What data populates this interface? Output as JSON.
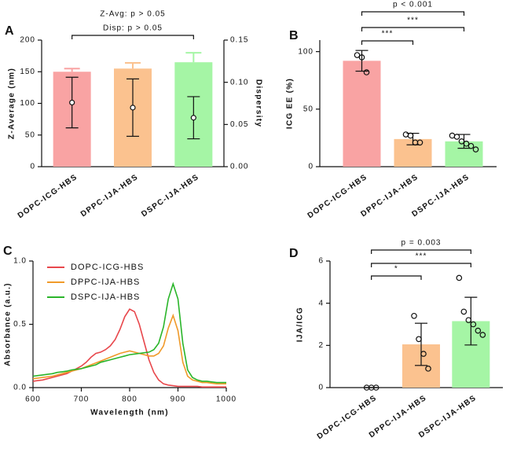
{
  "chart_data": [
    {
      "type": "bar",
      "panel": "A",
      "ylabel": "Z-Average (nm)",
      "y2label": "Dispersity",
      "categories": [
        "DOPC-ICG-HBS",
        "DPPC-IJA-HBS",
        "DSPC-IJA-HBS"
      ],
      "values": [
        150,
        155,
        165
      ],
      "errors": [
        5,
        9,
        15
      ],
      "colors": [
        "#f9a3a3",
        "#fbc28f",
        "#a5f5a5"
      ],
      "ylim": [
        0,
        200
      ],
      "yticks": [
        0,
        50,
        100,
        150,
        200
      ],
      "overlay": {
        "axis": "y2",
        "values": [
          0.076,
          0.07,
          0.058
        ],
        "errors": [
          0.03,
          0.034,
          0.025
        ]
      },
      "y2lim": [
        0,
        0.15
      ],
      "y2ticks": [
        {
          "value": 0,
          "label": "0.00"
        },
        {
          "value": 0.05,
          "label": "0.05"
        },
        {
          "value": 0.1,
          "label": "0.10"
        },
        {
          "value": 0.15,
          "label": "0.15"
        }
      ],
      "comparisons": [
        {
          "from": 0,
          "to": 2,
          "labels": [
            "Z-Avg: p > 0.05",
            "Disp: p > 0.05"
          ]
        }
      ]
    },
    {
      "type": "bar",
      "panel": "B",
      "ylabel": "ICG EE (%)",
      "categories": [
        "DOPC-ICG-HBS",
        "DPPC-IJA-HBS",
        "DSPC-IJA-HBS"
      ],
      "values": [
        92,
        24,
        22
      ],
      "errors": [
        9,
        5,
        6
      ],
      "colors": [
        "#f9a3a3",
        "#fbc28f",
        "#a5f5a5"
      ],
      "points": [
        [
          97,
          95,
          82
        ],
        [
          28,
          27,
          21,
          21
        ],
        [
          27,
          26,
          22,
          20,
          18,
          15
        ]
      ],
      "ylim": [
        0,
        110
      ],
      "yticks": [
        0,
        50,
        100
      ],
      "comparisons": [
        {
          "from": 0,
          "to": 2,
          "labels": [
            "p < 0.001"
          ]
        },
        {
          "from": 0,
          "to": 2,
          "labels": [
            "***"
          ]
        },
        {
          "from": 0,
          "to": 1,
          "labels": [
            "***"
          ]
        }
      ]
    },
    {
      "type": "line",
      "panel": "C",
      "ylabel": "Absorbance (a.u.)",
      "xlabel": "Wavelength (nm)",
      "x": [
        600,
        610,
        620,
        630,
        640,
        650,
        660,
        670,
        680,
        690,
        700,
        710,
        720,
        730,
        740,
        750,
        760,
        770,
        780,
        790,
        800,
        810,
        820,
        830,
        840,
        850,
        860,
        870,
        880,
        890,
        900,
        910,
        920,
        930,
        940,
        950,
        960,
        970,
        980,
        990,
        1000
      ],
      "series": [
        {
          "name": "DOPC-ICG-HBS",
          "color": "#e8474c",
          "values": [
            0.05,
            0.055,
            0.06,
            0.07,
            0.08,
            0.09,
            0.1,
            0.11,
            0.13,
            0.15,
            0.17,
            0.2,
            0.24,
            0.27,
            0.28,
            0.3,
            0.33,
            0.38,
            0.46,
            0.56,
            0.62,
            0.6,
            0.5,
            0.36,
            0.22,
            0.12,
            0.06,
            0.03,
            0.02,
            0.015,
            0.01,
            0.01,
            0.01,
            0.01,
            0.01,
            0.005,
            0.005,
            0.005,
            0.005,
            0.005,
            0.005
          ]
        },
        {
          "name": "DPPC-IJA-HBS",
          "color": "#f09a2a",
          "values": [
            0.07,
            0.075,
            0.08,
            0.085,
            0.09,
            0.1,
            0.11,
            0.12,
            0.13,
            0.14,
            0.15,
            0.165,
            0.18,
            0.195,
            0.21,
            0.225,
            0.24,
            0.255,
            0.27,
            0.28,
            0.29,
            0.28,
            0.27,
            0.26,
            0.25,
            0.25,
            0.27,
            0.33,
            0.47,
            0.57,
            0.45,
            0.2,
            0.09,
            0.06,
            0.05,
            0.04,
            0.04,
            0.035,
            0.03,
            0.03,
            0.03
          ]
        },
        {
          "name": "DSPC-IJA-HBS",
          "color": "#2ab52a",
          "values": [
            0.09,
            0.095,
            0.1,
            0.105,
            0.11,
            0.12,
            0.125,
            0.13,
            0.14,
            0.145,
            0.15,
            0.16,
            0.17,
            0.18,
            0.2,
            0.21,
            0.22,
            0.23,
            0.24,
            0.25,
            0.26,
            0.265,
            0.27,
            0.275,
            0.28,
            0.3,
            0.35,
            0.48,
            0.7,
            0.82,
            0.7,
            0.35,
            0.14,
            0.08,
            0.06,
            0.05,
            0.05,
            0.045,
            0.04,
            0.04,
            0.04
          ]
        }
      ],
      "xlim": [
        600,
        1000
      ],
      "xticks": [
        600,
        700,
        800,
        900,
        1000
      ],
      "ylim": [
        0,
        1
      ],
      "yticks": [
        {
          "value": 0,
          "label": "0.0"
        },
        {
          "value": 0.5,
          "label": "0.5"
        },
        {
          "value": 1,
          "label": "1.0"
        }
      ],
      "legend": "upper left"
    },
    {
      "type": "bar",
      "panel": "D",
      "ylabel": "IJA/ICG",
      "categories": [
        "DOPC-ICG-HBS",
        "DPPC-IJA-HBS",
        "DSPC-IJA-HBS"
      ],
      "values": [
        0,
        2.05,
        3.15
      ],
      "errors": [
        0,
        1.0,
        1.13
      ],
      "colors": [
        "#f9a3a3",
        "#fbc28f",
        "#a5f5a5"
      ],
      "points": [
        [
          0,
          0,
          0
        ],
        [
          3.4,
          2.3,
          1.6,
          0.9
        ],
        [
          5.2,
          3.6,
          3.2,
          3.0,
          2.7,
          2.5
        ]
      ],
      "ylim": [
        0,
        6
      ],
      "yticks": [
        0,
        2,
        4,
        6
      ],
      "comparisons": [
        {
          "from": 0,
          "to": 2,
          "labels": [
            "p = 0.003"
          ]
        },
        {
          "from": 0,
          "to": 2,
          "labels": [
            "***"
          ]
        },
        {
          "from": 0,
          "to": 1,
          "labels": [
            "*"
          ]
        }
      ]
    }
  ]
}
